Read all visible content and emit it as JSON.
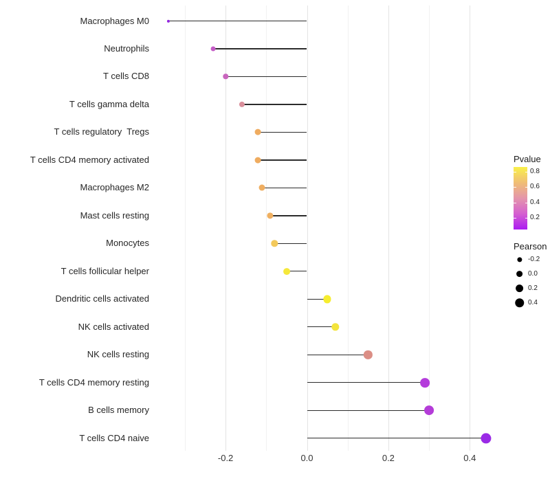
{
  "chart_data": {
    "type": "lollipop",
    "orientation": "horizontal",
    "title": "",
    "xlabel": "",
    "ylabel": "",
    "xlim": [
      -0.38,
      0.48
    ],
    "baseline_x": 0.0,
    "grid": true,
    "x_major_ticks": [
      {
        "label": "-0.2",
        "value": -0.2
      },
      {
        "label": "0.0",
        "value": 0.0
      },
      {
        "label": "0.2",
        "value": 0.2
      },
      {
        "label": "0.4",
        "value": 0.4
      }
    ],
    "x_minor_gridlines": [
      -0.3,
      -0.1,
      0.1,
      0.3
    ],
    "points": [
      {
        "label": "Macrophages M0",
        "pearson": -0.34,
        "pvalue": 0.02,
        "color": "#9327E0"
      },
      {
        "label": "Neutrophils",
        "pearson": -0.23,
        "pvalue": 0.28,
        "color": "#C45CC6"
      },
      {
        "label": "T cells CD8",
        "pearson": -0.2,
        "pvalue": 0.32,
        "color": "#C966BE"
      },
      {
        "label": "T cells gamma delta",
        "pearson": -0.16,
        "pvalue": 0.45,
        "color": "#D98F9B"
      },
      {
        "label": "T cells regulatory  Tregs",
        "pearson": -0.12,
        "pvalue": 0.6,
        "color": "#EFAC60"
      },
      {
        "label": "T cells CD4 memory activated",
        "pearson": -0.12,
        "pvalue": 0.6,
        "color": "#EFAC60"
      },
      {
        "label": "Macrophages M2",
        "pearson": -0.11,
        "pvalue": 0.61,
        "color": "#EFAE61"
      },
      {
        "label": "Mast cells resting",
        "pearson": -0.09,
        "pvalue": 0.63,
        "color": "#F0B061"
      },
      {
        "label": "Monocytes",
        "pearson": -0.08,
        "pvalue": 0.7,
        "color": "#F3C95B"
      },
      {
        "label": "T cells follicular helper",
        "pearson": -0.05,
        "pvalue": 0.79,
        "color": "#F5E83B"
      },
      {
        "label": "Dendritic cells activated",
        "pearson": 0.05,
        "pvalue": 0.83,
        "color": "#F6ED2F"
      },
      {
        "label": "NK cells activated",
        "pearson": 0.07,
        "pvalue": 0.8,
        "color": "#F3E43C"
      },
      {
        "label": "NK cells resting",
        "pearson": 0.15,
        "pvalue": 0.45,
        "color": "#DB8E85"
      },
      {
        "label": "T cells CD4 memory resting",
        "pearson": 0.29,
        "pvalue": 0.15,
        "color": "#B43CDB"
      },
      {
        "label": "B cells memory",
        "pearson": 0.3,
        "pvalue": 0.15,
        "color": "#B43CD8"
      },
      {
        "label": "T cells CD4 naive",
        "pearson": 0.44,
        "pvalue": 0.05,
        "color": "#9A2AE6"
      }
    ],
    "legends": {
      "pvalue": {
        "title": "Pvalue",
        "tick_labels": [
          "0.8",
          "0.6",
          "0.4",
          "0.2"
        ],
        "gradient_top_to_bottom": [
          "#F9F04A",
          "#F0BE75",
          "#E495AB",
          "#D55FD0",
          "#AB1BF2"
        ],
        "value_top": 0.85,
        "value_bottom": 0.05
      },
      "pearson": {
        "title": "Pearson",
        "entries": [
          {
            "label": "-0.2",
            "value": -0.2
          },
          {
            "label": "0.0",
            "value": 0.0
          },
          {
            "label": "0.2",
            "value": 0.2
          },
          {
            "label": "0.4",
            "value": 0.4
          }
        ],
        "dot_color": "#000000"
      }
    },
    "colors": {
      "stem": "#2B2B2B",
      "grid_major": "#E3E3E3",
      "grid_minor": "#F1F1F1",
      "axis_text": "#333333",
      "label_text": "#262626",
      "background": "#FFFFFF"
    }
  }
}
